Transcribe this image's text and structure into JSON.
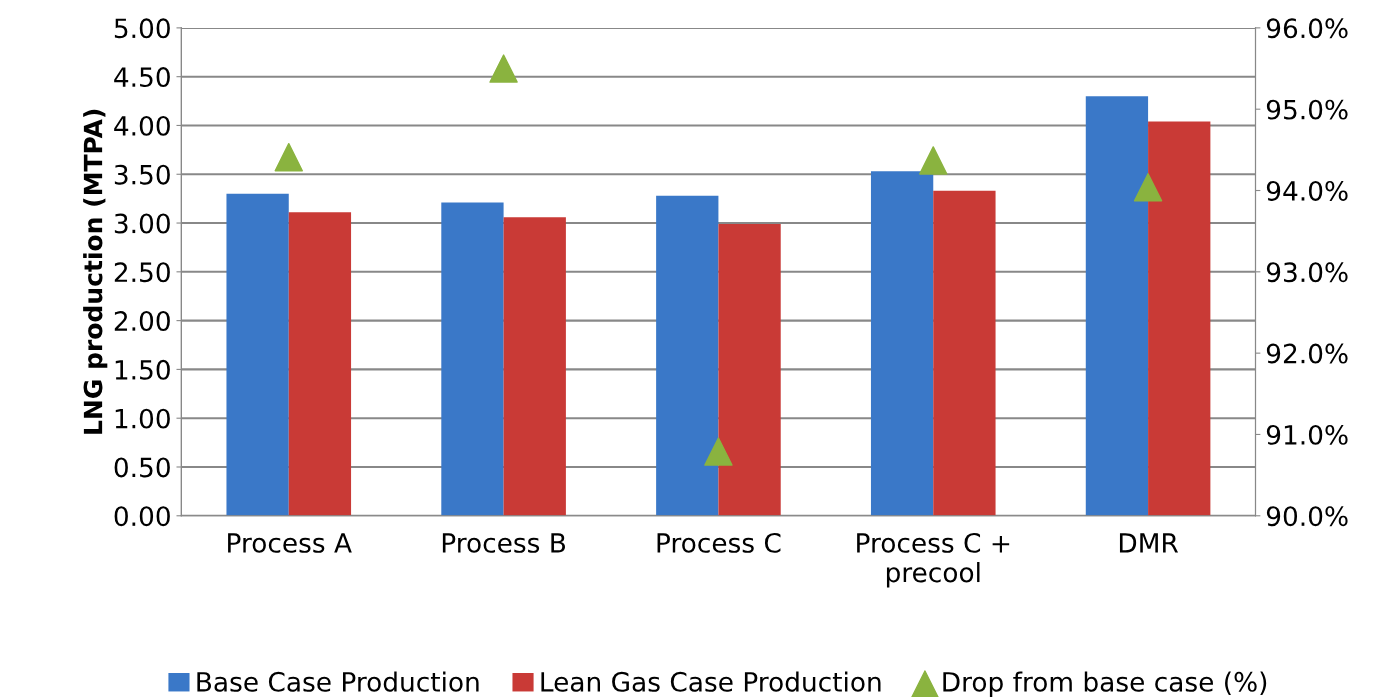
{
  "chart_data": {
    "type": "bar",
    "ylabel": "LNG production (MTPA)",
    "categories": [
      "Process A",
      "Process B",
      "Process C",
      "Process C +\nprecool",
      "DMR"
    ],
    "series": [
      {
        "name": "Base Case Production",
        "color": "#3a78c8",
        "values": [
          3.3,
          3.21,
          3.28,
          3.53,
          4.3
        ]
      },
      {
        "name": "Lean Gas Case Production",
        "color": "#c93a36",
        "values": [
          3.11,
          3.06,
          2.99,
          3.33,
          4.04
        ]
      },
      {
        "name": "Drop from base case (%)",
        "type": "scatter",
        "axis": "y2",
        "color": "#8ab33f",
        "marker": "triangle",
        "values": [
          94.41,
          95.5,
          90.79,
          94.37,
          94.04
        ]
      }
    ],
    "ylim": [
      0,
      5
    ],
    "yticks": [
      {
        "value": 0,
        "label": "0.00"
      },
      {
        "value": 0.5,
        "label": "0.50"
      },
      {
        "value": 1,
        "label": "1.00"
      },
      {
        "value": 1.5,
        "label": "1.50"
      },
      {
        "value": 2,
        "label": "2.00"
      },
      {
        "value": 2.5,
        "label": "2.50"
      },
      {
        "value": 3,
        "label": "3.00"
      },
      {
        "value": 3.5,
        "label": "3.50"
      },
      {
        "value": 4,
        "label": "4.00"
      },
      {
        "value": 4.5,
        "label": "4.50"
      },
      {
        "value": 5,
        "label": "5.00"
      }
    ],
    "y2lim": [
      90,
      96
    ],
    "y2ticks": [
      {
        "value": 90,
        "label": "90.0%"
      },
      {
        "value": 91,
        "label": "91.0%"
      },
      {
        "value": 92,
        "label": "92.0%"
      },
      {
        "value": 93,
        "label": "93.0%"
      },
      {
        "value": 94,
        "label": "94.0%"
      },
      {
        "value": 95,
        "label": "95.0%"
      },
      {
        "value": 96,
        "label": "96.0%"
      }
    ],
    "grid": "y",
    "legend": "bottom"
  }
}
